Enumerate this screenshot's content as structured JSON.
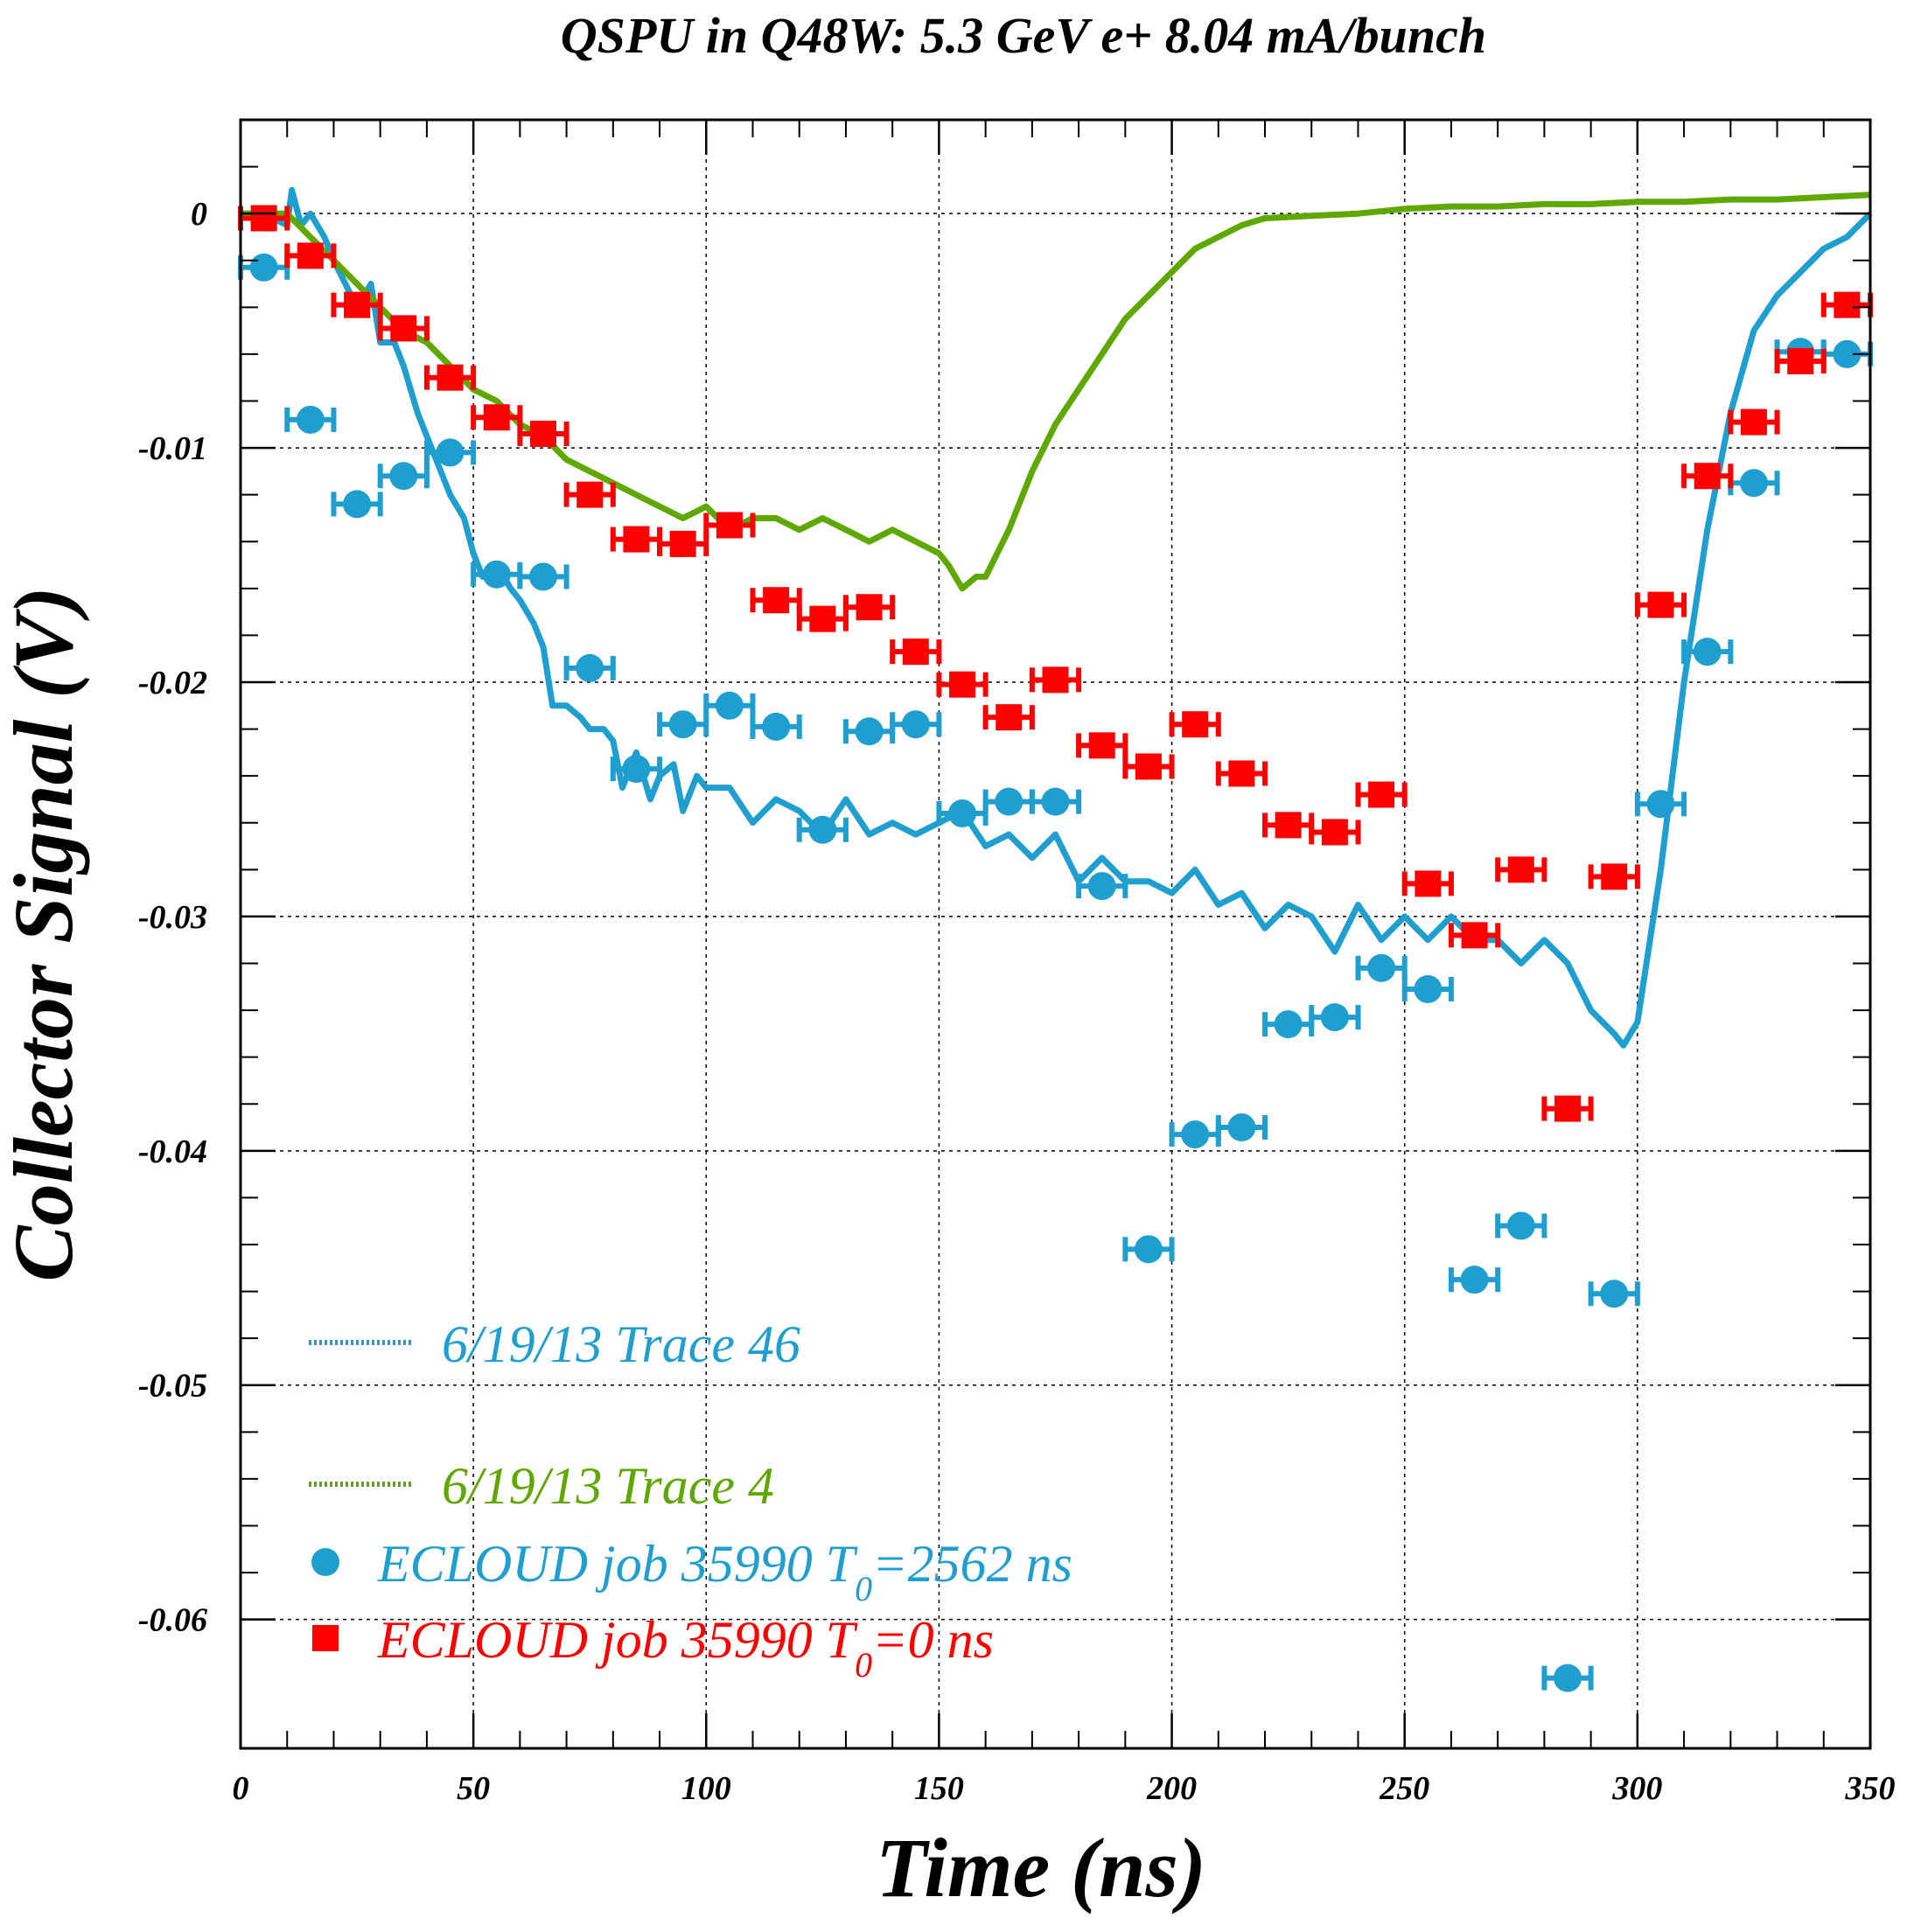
{
  "chart_data": {
    "type": "scatter",
    "title": "QSPU in Q48W: 5.3 GeV e+ 8.04 mA/bunch",
    "xlabel": "Time (ns)",
    "ylabel": "Collector Signal (V)",
    "xlim": [
      0,
      350
    ],
    "ylim": [
      -0.0655,
      0.004
    ],
    "x_ticks": [
      0,
      50,
      100,
      150,
      200,
      250,
      300,
      350
    ],
    "x_tick_labels": [
      "0",
      "50",
      "100",
      "150",
      "200",
      "250",
      "300",
      "350"
    ],
    "y_ticks": [
      0,
      -0.01,
      -0.02,
      -0.03,
      -0.04,
      -0.05,
      -0.06
    ],
    "y_tick_labels": [
      "0",
      "-0.01",
      "-0.02",
      "-0.03",
      "-0.04",
      "-0.05",
      "-0.06"
    ],
    "grid": true,
    "legend_position": "bottom-left",
    "series": [
      {
        "name": "6/19/13 Trace 46",
        "kind": "line",
        "color": "#1f9fd0",
        "x": [
          0,
          5,
          10,
          11,
          13,
          15,
          18,
          20,
          25,
          28,
          30,
          33,
          35,
          38,
          40,
          42,
          45,
          48,
          50,
          52,
          55,
          58,
          60,
          63,
          65,
          67,
          70,
          73,
          75,
          78,
          80,
          82,
          85,
          88,
          90,
          93,
          95,
          98,
          100,
          105,
          110,
          115,
          120,
          125,
          130,
          135,
          140,
          145,
          150,
          155,
          160,
          165,
          170,
          175,
          180,
          185,
          190,
          195,
          200,
          205,
          210,
          215,
          220,
          225,
          230,
          235,
          240,
          245,
          250,
          255,
          260,
          265,
          270,
          275,
          280,
          285,
          290,
          295,
          297,
          300,
          305,
          310,
          315,
          320,
          325,
          330,
          335,
          340,
          345,
          350
        ],
        "y": [
          0,
          0,
          -0.0005,
          0.001,
          -0.0005,
          0.0,
          -0.001,
          -0.002,
          -0.004,
          -0.003,
          -0.0055,
          -0.0055,
          -0.0065,
          -0.0085,
          -0.0095,
          -0.0105,
          -0.012,
          -0.013,
          -0.0145,
          -0.0155,
          -0.015,
          -0.016,
          -0.0165,
          -0.0175,
          -0.0185,
          -0.021,
          -0.021,
          -0.0215,
          -0.022,
          -0.022,
          -0.0225,
          -0.0245,
          -0.023,
          -0.025,
          -0.024,
          -0.0235,
          -0.0255,
          -0.024,
          -0.0245,
          -0.0245,
          -0.026,
          -0.025,
          -0.0255,
          -0.0265,
          -0.025,
          -0.0265,
          -0.026,
          -0.0265,
          -0.026,
          -0.0255,
          -0.027,
          -0.0265,
          -0.0275,
          -0.0265,
          -0.0285,
          -0.0275,
          -0.0285,
          -0.0285,
          -0.029,
          -0.028,
          -0.0295,
          -0.029,
          -0.0305,
          -0.0295,
          -0.03,
          -0.0315,
          -0.0295,
          -0.031,
          -0.03,
          -0.031,
          -0.03,
          -0.031,
          -0.031,
          -0.032,
          -0.031,
          -0.032,
          -0.034,
          -0.035,
          -0.0355,
          -0.0345,
          -0.028,
          -0.02,
          -0.0135,
          -0.0085,
          -0.005,
          -0.0035,
          -0.0025,
          -0.0015,
          -0.001,
          0.0
        ]
      },
      {
        "name": "6/19/13 Trace 4",
        "kind": "line",
        "color": "#5fa800",
        "x": [
          0,
          5,
          10,
          15,
          20,
          25,
          30,
          35,
          40,
          45,
          50,
          55,
          60,
          65,
          70,
          75,
          80,
          85,
          90,
          95,
          100,
          105,
          110,
          115,
          120,
          125,
          130,
          135,
          140,
          145,
          150,
          152,
          155,
          158,
          160,
          165,
          170,
          175,
          180,
          185,
          190,
          195,
          200,
          205,
          210,
          215,
          220,
          230,
          240,
          250,
          260,
          270,
          280,
          290,
          300,
          310,
          320,
          330,
          340,
          350
        ],
        "y": [
          0,
          0,
          0,
          -0.001,
          -0.002,
          -0.003,
          -0.004,
          -0.005,
          -0.0055,
          -0.0065,
          -0.0075,
          -0.008,
          -0.009,
          -0.0095,
          -0.0105,
          -0.011,
          -0.0115,
          -0.012,
          -0.0125,
          -0.013,
          -0.0125,
          -0.0135,
          -0.013,
          -0.013,
          -0.0135,
          -0.013,
          -0.0135,
          -0.014,
          -0.0135,
          -0.014,
          -0.0145,
          -0.015,
          -0.016,
          -0.0155,
          -0.0155,
          -0.0135,
          -0.011,
          -0.009,
          -0.0075,
          -0.006,
          -0.0045,
          -0.0035,
          -0.0025,
          -0.0015,
          -0.001,
          -0.0005,
          -0.0002,
          -0.0001,
          0.0,
          0.0002,
          0.0003,
          0.0003,
          0.0004,
          0.0004,
          0.0005,
          0.0005,
          0.0006,
          0.0006,
          0.0007,
          0.0008
        ]
      },
      {
        "name": "ECLOUD job 35990 T0=2562 ns",
        "legend_text": "ECLOUD job 35990 T",
        "legend_subscript": "0",
        "legend_suffix": "=2562 ns",
        "kind": "points",
        "marker": "circle",
        "color": "#1f9fd0",
        "x_error": 5,
        "x": [
          5,
          15,
          25,
          35,
          45,
          55,
          65,
          75,
          85,
          95,
          105,
          115,
          125,
          135,
          145,
          155,
          165,
          175,
          185,
          195,
          205,
          215,
          225,
          235,
          245,
          255,
          265,
          275,
          285,
          295,
          305,
          315,
          325,
          335,
          345
        ],
        "y": [
          -0.0023,
          -0.0088,
          -0.0124,
          -0.0112,
          -0.0102,
          -0.0154,
          -0.0155,
          -0.0194,
          -0.0237,
          -0.0218,
          -0.021,
          -0.0219,
          -0.0263,
          -0.0221,
          -0.0218,
          -0.0256,
          -0.0251,
          -0.0251,
          -0.0287,
          -0.0442,
          -0.0393,
          -0.039,
          -0.0346,
          -0.0343,
          -0.0322,
          -0.0331,
          -0.0455,
          -0.0432,
          -0.0625,
          -0.0461,
          -0.0252,
          -0.0187,
          -0.0115,
          -0.0059,
          -0.006
        ]
      },
      {
        "name": "ECLOUD job 35990 T0=0 ns",
        "legend_text": "ECLOUD job 35990 T",
        "legend_subscript": "0",
        "legend_suffix": "=0 ns",
        "kind": "points",
        "marker": "square",
        "color": "#ff0000",
        "x_error": 5,
        "x": [
          5,
          15,
          25,
          35,
          45,
          55,
          65,
          75,
          85,
          95,
          105,
          115,
          125,
          135,
          145,
          155,
          165,
          175,
          185,
          195,
          205,
          215,
          225,
          235,
          245,
          255,
          265,
          275,
          285,
          295,
          305,
          315,
          325,
          335,
          345
        ],
        "y": [
          -0.0002,
          -0.0018,
          -0.0039,
          -0.0049,
          -0.007,
          -0.0087,
          -0.0094,
          -0.012,
          -0.0139,
          -0.0141,
          -0.0133,
          -0.0165,
          -0.0173,
          -0.0168,
          -0.0187,
          -0.0201,
          -0.0215,
          -0.0199,
          -0.0227,
          -0.0236,
          -0.0218,
          -0.0239,
          -0.0261,
          -0.0264,
          -0.0248,
          -0.0286,
          -0.0308,
          -0.028,
          -0.0382,
          -0.0283,
          -0.0167,
          -0.0112,
          -0.0089,
          -0.0063,
          -0.0039
        ]
      }
    ]
  }
}
